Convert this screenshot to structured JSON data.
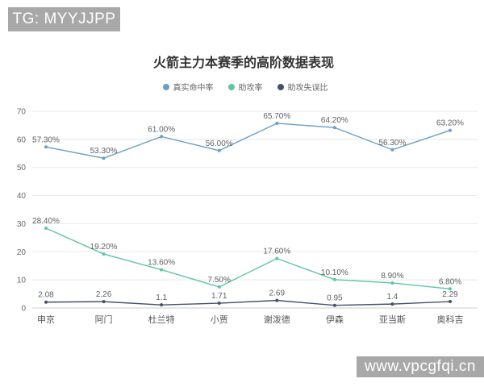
{
  "watermark_top": "TG: MYYJJPP",
  "watermark_bottom": "www.vpcgfqi.cn",
  "chart_data": {
    "type": "line",
    "title": "火箭主力本赛季的高阶数据表现",
    "categories": [
      "申京",
      "阿门",
      "杜兰特",
      "小贾",
      "谢泼德",
      "伊森",
      "亚当斯",
      "奥科吉"
    ],
    "series": [
      {
        "name": "真实命中率",
        "color": "#6b9fc4",
        "values": [
          57.3,
          53.3,
          61.0,
          56.0,
          65.7,
          64.2,
          56.3,
          63.2
        ],
        "labels": [
          "57.30%",
          "53.30%",
          "61.00%",
          "56.00%",
          "65.70%",
          "64.20%",
          "56.30%",
          "63.20%"
        ]
      },
      {
        "name": "助攻率",
        "color": "#5ec6a3",
        "values": [
          28.4,
          19.2,
          13.6,
          7.5,
          17.6,
          10.1,
          8.9,
          6.8
        ],
        "labels": [
          "28.40%",
          "19.20%",
          "13.60%",
          "7.50%",
          "17.60%",
          "10.10%",
          "8.90%",
          "6.80%"
        ]
      },
      {
        "name": "助攻失误比",
        "color": "#46506b",
        "values": [
          2.08,
          2.26,
          1.1,
          1.71,
          2.69,
          0.95,
          1.4,
          2.29
        ],
        "labels": [
          "2.08",
          "2.26",
          "1.1",
          "1.71",
          "2.69",
          "0.95",
          "1.4",
          "2.29"
        ]
      }
    ],
    "y_ticks": [
      0,
      10,
      20,
      30,
      40,
      50,
      60,
      70
    ],
    "ylim": [
      0,
      70
    ],
    "xlabel": "",
    "ylabel": "",
    "grid": true,
    "legend_position": "top"
  },
  "style_colors": {
    "grid_line": "#e8e8e8",
    "axis_line": "#cccccc",
    "tick_label": "#666666",
    "category_label": "#555555",
    "data_label": "#5d6166",
    "watermark_bg": "#a8a8a8",
    "title": "#333333"
  }
}
